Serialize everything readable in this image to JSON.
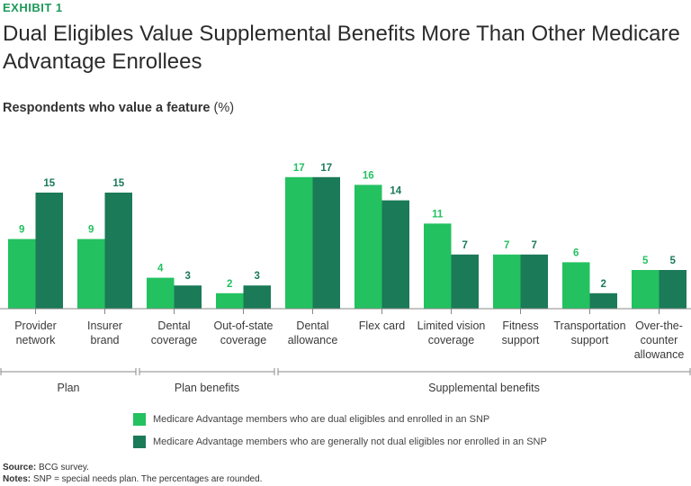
{
  "header": {
    "exhibit": "EXHIBIT 1",
    "title": "Dual Eligibles Value Supplemental Benefits More Than Other Medicare Advantage Enrollees",
    "subtitle_main": "Respondents who value a feature",
    "subtitle_unit": "(%)"
  },
  "colors": {
    "series1": "#23c160",
    "series2": "#1b7a57",
    "axis": "#888888",
    "text": "#333333"
  },
  "chart_data": {
    "type": "bar",
    "title": "Respondents who value a feature (%)",
    "categories": [
      [
        "Provider",
        "network"
      ],
      [
        "Insurer",
        "brand"
      ],
      [
        "Dental",
        "coverage"
      ],
      [
        "Out-of-state",
        "coverage"
      ],
      [
        "Dental",
        "allowance"
      ],
      [
        "Flex card"
      ],
      [
        "Limited vision",
        "coverage"
      ],
      [
        "Fitness",
        "support"
      ],
      [
        "Transportation",
        "support"
      ],
      [
        "Over-the-",
        "counter",
        "allowance"
      ]
    ],
    "series": [
      {
        "name": "Medicare Advantage members who are dual eligibles and enrolled in an SNP",
        "values": [
          9,
          9,
          4,
          2,
          17,
          16,
          11,
          7,
          6,
          5
        ]
      },
      {
        "name": "Medicare Advantage members who are generally not dual eligibles nor enrolled in an SNP",
        "values": [
          15,
          15,
          3,
          3,
          17,
          14,
          7,
          7,
          2,
          5
        ]
      }
    ],
    "groups": [
      {
        "label": "Plan",
        "from": 0,
        "to": 1
      },
      {
        "label": "Plan benefits",
        "from": 2,
        "to": 3
      },
      {
        "label": "Supplemental benefits",
        "from": 4,
        "to": 9
      }
    ],
    "ylim": [
      0,
      17
    ],
    "xlabel": "",
    "ylabel": ""
  },
  "legend": {
    "item1": "Medicare Advantage members who are dual eligibles and enrolled in an SNP",
    "item2": "Medicare Advantage members who are generally not dual eligibles nor enrolled in an SNP"
  },
  "footer": {
    "source_label": "Source:",
    "source_text": "BCG survey.",
    "notes_label": "Notes:",
    "notes_text": "SNP = special needs plan. The percentages are rounded."
  }
}
